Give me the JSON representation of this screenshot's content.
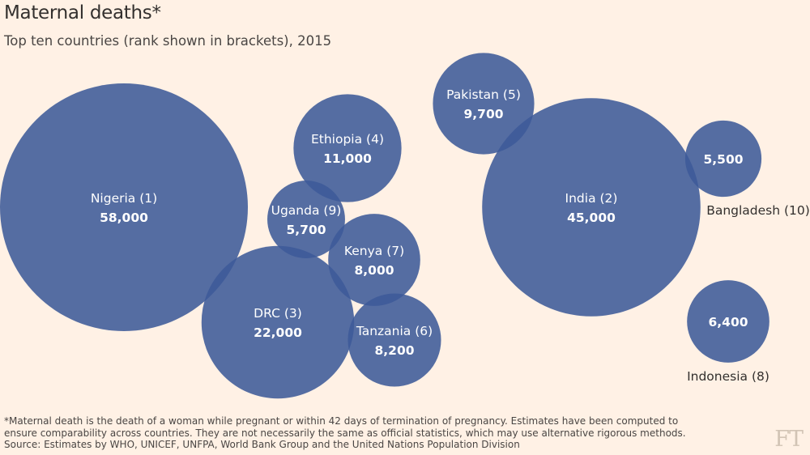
{
  "title": "Maternal deaths*",
  "subtitle": "Top ten countries (rank shown in brackets), 2015",
  "footnote": {
    "line1": "*Maternal death is the death of a woman while pregnant or within 42 days of termination of pregnancy. Estimates have been computed to",
    "line2": "ensure comparability across countries. They are not necessarily the same as official statistics, which may use alternative rigorous methods.",
    "line3": "Source: Estimates by WHO, UNICEF, UNFPA, World Bank Group and the United Nations Population Division"
  },
  "logo": "FT",
  "colors": {
    "bubble": "#3D5A99",
    "background": "#FFF1E5",
    "inner_label": "#FFFFFF",
    "outer_label": "#33302E"
  },
  "chart_data": {
    "type": "bubble",
    "title": "Maternal deaths*",
    "subtitle": "Top ten countries (rank shown in brackets), 2015",
    "unit": "deaths",
    "items": [
      {
        "country": "Nigeria",
        "rank": 1,
        "value": 58000,
        "label": "Nigeria (1)",
        "value_label": "58,000",
        "label_position": "inside"
      },
      {
        "country": "India",
        "rank": 2,
        "value": 45000,
        "label": "India (2)",
        "value_label": "45,000",
        "label_position": "inside"
      },
      {
        "country": "DRC",
        "rank": 3,
        "value": 22000,
        "label": "DRC (3)",
        "value_label": "22,000",
        "label_position": "inside"
      },
      {
        "country": "Ethiopia",
        "rank": 4,
        "value": 11000,
        "label": "Ethiopia (4)",
        "value_label": "11,000",
        "label_position": "inside"
      },
      {
        "country": "Pakistan",
        "rank": 5,
        "value": 9700,
        "label": "Pakistan (5)",
        "value_label": "9,700",
        "label_position": "inside"
      },
      {
        "country": "Tanzania",
        "rank": 6,
        "value": 8200,
        "label": "Tanzania (6)",
        "value_label": "8,200",
        "label_position": "inside"
      },
      {
        "country": "Kenya",
        "rank": 7,
        "value": 8000,
        "label": "Kenya (7)",
        "value_label": "8,000",
        "label_position": "inside"
      },
      {
        "country": "Indonesia",
        "rank": 8,
        "value": 6400,
        "label": "Indonesia (8)",
        "value_label": "6,400",
        "label_position": "below"
      },
      {
        "country": "Uganda",
        "rank": 9,
        "value": 5700,
        "label": "Uganda (9)",
        "value_label": "5,700",
        "label_position": "inside"
      },
      {
        "country": "Bangladesh",
        "rank": 10,
        "value": 5500,
        "label": "Bangladesh (10)",
        "value_label": "5,500",
        "label_position": "below"
      }
    ]
  }
}
